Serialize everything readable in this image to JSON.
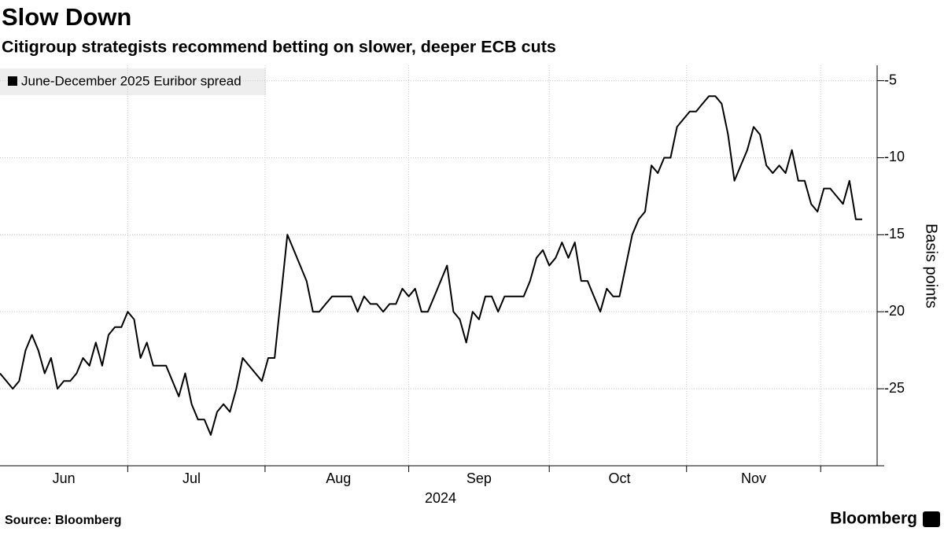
{
  "chart_data": {
    "type": "line",
    "title": "Slow Down",
    "subtitle": "Citigroup strategists recommend betting on slower, deeper ECB cuts",
    "source": "Source: Bloomberg",
    "brand": "Bloomberg",
    "xlabel": "2024",
    "ylabel": "Basis points",
    "categories": [
      null,
      null,
      null,
      null,
      null,
      null,
      null,
      null,
      null,
      null,
      "Jun",
      null,
      null,
      null,
      null,
      null,
      null,
      null,
      null,
      null,
      null,
      null,
      null,
      null,
      null,
      null,
      null,
      null,
      null,
      null,
      "Jul",
      null,
      null,
      null,
      null,
      null,
      null,
      null,
      null,
      null,
      null,
      null,
      null,
      null,
      null,
      null,
      null,
      null,
      null,
      null,
      null,
      null,
      null,
      "Aug",
      null,
      null,
      null,
      null,
      null,
      null,
      null,
      null,
      null,
      null,
      null,
      null,
      null,
      null,
      null,
      null,
      null,
      null,
      null,
      null,
      null,
      "Sep",
      null,
      null,
      null,
      null,
      null,
      null,
      null,
      null,
      null,
      null,
      null,
      null,
      null,
      null,
      null,
      null,
      null,
      null,
      null,
      null,
      null,
      "Oct",
      null,
      null,
      null,
      null,
      null,
      null,
      null,
      null,
      null,
      null,
      null,
      null,
      null,
      null,
      null,
      null,
      null,
      null,
      null,
      null,
      "Nov",
      null,
      null,
      null,
      null,
      null,
      null,
      null,
      null,
      null,
      null,
      null,
      null,
      null,
      null,
      null,
      null,
      null
    ],
    "series": [
      {
        "name": "June-December 2025 Euribor spread",
        "color": "#000000",
        "values": [
          -24,
          -24.5,
          -25,
          -24.5,
          -22.5,
          -21.5,
          -22.5,
          -24,
          -23,
          -25,
          -24.5,
          -24.5,
          -24,
          -23,
          -23.5,
          -22,
          -23.5,
          -21.5,
          -21,
          -21,
          -20,
          -20.5,
          -23,
          -22,
          -23.5,
          -23.5,
          -23.5,
          -24.5,
          -25.5,
          -24,
          -26,
          -27,
          -27,
          -28,
          -26.5,
          -26,
          -26.5,
          -25,
          -23,
          -23.5,
          -24,
          -24.5,
          -23,
          -23,
          -19,
          -15,
          -16,
          -17,
          -18,
          -20,
          -20,
          -19.5,
          -19,
          -19,
          -19,
          -19,
          -20,
          -19,
          -19.5,
          -19.5,
          -20,
          -19.5,
          -19.5,
          -18.5,
          -19,
          -18.5,
          -20,
          -20,
          -19,
          -18,
          -17,
          -20,
          -20.5,
          -22,
          -20,
          -20.5,
          -19,
          -19,
          -20,
          -19,
          -19,
          -19,
          -19,
          -18,
          -16.5,
          -16,
          -17,
          -16.5,
          -15.5,
          -16.5,
          -15.5,
          -18,
          -18,
          -19,
          -20,
          -18.5,
          -19,
          -19,
          -17,
          -15,
          -14,
          -13.5,
          -10.5,
          -11,
          -10,
          -10,
          -8,
          -7.5,
          -7,
          -7,
          -6.5,
          -6,
          -6,
          -6.5,
          -8.5,
          -11.5,
          -10.5,
          -9.5,
          -8,
          -8.5,
          -10.5,
          -11,
          -10.5,
          -11,
          -9.5,
          -11.5,
          -11.5,
          -13,
          -13.5,
          -12,
          -12,
          -12.5,
          -13,
          -11.5,
          -14,
          -14
        ]
      }
    ],
    "ylim": [
      -30,
      -4
    ],
    "yticks": [
      -5,
      -10,
      -15,
      -20,
      -25
    ],
    "grid": true
  }
}
